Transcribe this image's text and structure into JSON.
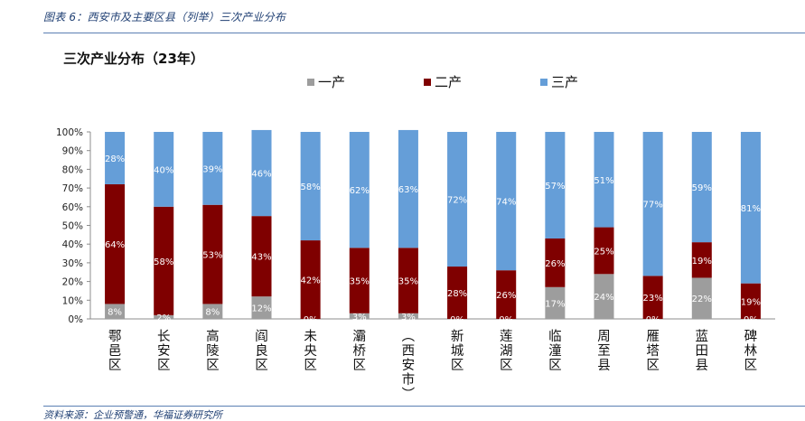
{
  "figure_caption": "图表 6：西安市及主要区县（列举）三次产业分布",
  "source_note": "资料来源：企业预警通，华福证券研究所",
  "colors": {
    "primary": "#9d9d9d",
    "secondary": "#7f0000",
    "tertiary": "#659ed8",
    "label_dark": "#ffffff",
    "rule": "#5b7fb3",
    "caption": "#1f3f73"
  },
  "chart_data": {
    "type": "bar",
    "stacked": true,
    "title": "三次产业分布（23年）",
    "xlabel": "",
    "ylabel": "",
    "ylim": [
      0,
      100
    ],
    "yticks": [
      "0%",
      "10%",
      "20%",
      "30%",
      "40%",
      "50%",
      "60%",
      "70%",
      "80%",
      "90%",
      "100%"
    ],
    "legend_position": "top-center",
    "categories": [
      "鄠邑区",
      "长安区",
      "高陵区",
      "阎良区",
      "未央区",
      "灞桥区",
      "(西安市)",
      "新城区",
      "莲湖区",
      "临潼区",
      "周至县",
      "雁塔区",
      "蓝田县",
      "碑林区"
    ],
    "series": [
      {
        "name": "一产",
        "values": [
          8,
          2,
          8,
          12,
          0,
          3,
          3,
          0,
          0,
          17,
          24,
          0,
          22,
          0
        ]
      },
      {
        "name": "二产",
        "values": [
          64,
          58,
          53,
          43,
          42,
          35,
          35,
          28,
          26,
          26,
          25,
          23,
          19,
          19
        ]
      },
      {
        "name": "三产",
        "values": [
          28,
          40,
          39,
          46,
          58,
          62,
          63,
          72,
          74,
          57,
          51,
          77,
          59,
          81
        ]
      }
    ],
    "data_labels": [
      [
        "8%",
        "2%",
        "8%",
        "12%",
        "0%",
        "3%",
        "3%",
        "0%",
        "0%",
        "17%",
        "24%",
        "0%",
        "22%",
        "0%"
      ],
      [
        "64%",
        "58%",
        "53%",
        "43%",
        "42%",
        "35%",
        "35%",
        "28%",
        "26%",
        "26%",
        "25%",
        "23%",
        "19%",
        "19%"
      ],
      [
        "28%",
        "40%",
        "39%",
        "46%",
        "58%",
        "62%",
        "63%",
        "72%",
        "74%",
        "57%",
        "51%",
        "77%",
        "59%",
        "81%"
      ]
    ]
  }
}
